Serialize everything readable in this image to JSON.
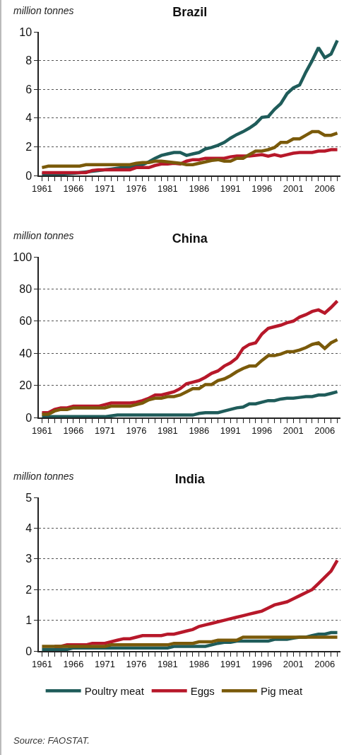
{
  "chart_data": [
    {
      "type": "line",
      "title": "Brazil",
      "ylabel": "million tonnes",
      "grid": "y",
      "legend": false,
      "line_style": "solid",
      "x": [
        1961,
        1962,
        1963,
        1964,
        1965,
        1966,
        1967,
        1968,
        1969,
        1970,
        1971,
        1972,
        1973,
        1974,
        1975,
        1976,
        1977,
        1978,
        1979,
        1980,
        1981,
        1982,
        1983,
        1984,
        1985,
        1986,
        1987,
        1988,
        1989,
        1990,
        1991,
        1992,
        1993,
        1994,
        1995,
        1996,
        1997,
        1998,
        1999,
        2000,
        2001,
        2002,
        2003,
        2004,
        2005,
        2006,
        2007,
        2008
      ],
      "xlim": [
        1960.5,
        2008.5
      ],
      "xticks": [
        1961,
        {
          "value": 1962,
          "label": null
        },
        {
          "value": 1963,
          "label": null
        },
        {
          "value": 1964,
          "label": null
        },
        {
          "value": 1965,
          "label": null
        },
        1966,
        {
          "value": 1967,
          "label": null
        },
        {
          "value": 1968,
          "label": null
        },
        {
          "value": 1969,
          "label": null
        },
        {
          "value": 1970,
          "label": null
        },
        1971,
        {
          "value": 1972,
          "label": null
        },
        {
          "value": 1973,
          "label": null
        },
        {
          "value": 1974,
          "label": null
        },
        {
          "value": 1975,
          "label": null
        },
        1976,
        {
          "value": 1977,
          "label": null
        },
        {
          "value": 1978,
          "label": null
        },
        {
          "value": 1979,
          "label": null
        },
        {
          "value": 1980,
          "label": null
        },
        1981,
        {
          "value": 1982,
          "label": null
        },
        {
          "value": 1983,
          "label": null
        },
        {
          "value": 1984,
          "label": null
        },
        {
          "value": 1985,
          "label": null
        },
        1986,
        {
          "value": 1987,
          "label": null
        },
        {
          "value": 1988,
          "label": null
        },
        {
          "value": 1989,
          "label": null
        },
        {
          "value": 1990,
          "label": null
        },
        1991,
        {
          "value": 1992,
          "label": null
        },
        {
          "value": 1993,
          "label": null
        },
        {
          "value": 1994,
          "label": null
        },
        {
          "value": 1995,
          "label": null
        },
        1996,
        {
          "value": 1997,
          "label": null
        },
        {
          "value": 1998,
          "label": null
        },
        {
          "value": 1999,
          "label": null
        },
        {
          "value": 2000,
          "label": null
        },
        2001,
        {
          "value": 2002,
          "label": null
        },
        {
          "value": 2003,
          "label": null
        },
        {
          "value": 2004,
          "label": null
        },
        {
          "value": 2005,
          "label": null
        },
        2006,
        {
          "value": 2007,
          "label": null
        },
        {
          "value": 2008,
          "label": null
        }
      ],
      "ylim": [
        0,
        10
      ],
      "yticks": [
        0,
        2,
        4,
        6,
        8,
        10
      ],
      "series": [
        {
          "color": "#1f5c5a",
          "values": [
            0.1,
            0.1,
            0.1,
            0.1,
            0.12,
            0.15,
            0.2,
            0.25,
            0.3,
            0.35,
            0.4,
            0.45,
            0.5,
            0.55,
            0.6,
            0.65,
            0.75,
            0.95,
            1.2,
            1.4,
            1.5,
            1.6,
            1.6,
            1.4,
            1.5,
            1.6,
            1.85,
            1.95,
            2.1,
            2.3,
            2.6,
            2.85,
            3.05,
            3.3,
            3.6,
            4.05,
            4.1,
            4.6,
            5.0,
            5.7,
            6.1,
            6.3,
            7.2,
            8.0,
            8.9,
            8.2,
            8.45,
            9.4
          ]
        },
        {
          "color": "#b7182a",
          "values": [
            0.2,
            0.2,
            0.2,
            0.2,
            0.2,
            0.2,
            0.2,
            0.2,
            0.35,
            0.4,
            0.4,
            0.4,
            0.4,
            0.4,
            0.4,
            0.55,
            0.55,
            0.55,
            0.7,
            0.8,
            0.8,
            0.85,
            0.8,
            1.0,
            1.1,
            1.1,
            1.2,
            1.2,
            1.2,
            1.2,
            1.3,
            1.35,
            1.35,
            1.35,
            1.4,
            1.45,
            1.35,
            1.45,
            1.35,
            1.45,
            1.55,
            1.6,
            1.6,
            1.6,
            1.7,
            1.7,
            1.8,
            1.8
          ]
        },
        {
          "color": "#7a5a0a",
          "values": [
            0.55,
            0.65,
            0.65,
            0.65,
            0.65,
            0.65,
            0.65,
            0.75,
            0.75,
            0.75,
            0.75,
            0.75,
            0.75,
            0.75,
            0.75,
            0.85,
            0.9,
            0.9,
            1.0,
            1.0,
            0.95,
            0.9,
            0.85,
            0.75,
            0.75,
            0.85,
            0.95,
            1.05,
            1.1,
            1.0,
            1.0,
            1.2,
            1.2,
            1.45,
            1.7,
            1.7,
            1.8,
            1.95,
            2.3,
            2.3,
            2.55,
            2.55,
            2.8,
            3.05,
            3.05,
            2.8,
            2.8,
            2.95
          ]
        }
      ]
    },
    {
      "type": "line",
      "title": "China",
      "ylabel": "million tonnes",
      "grid": "y",
      "legend": false,
      "line_style": "solid",
      "x": [
        1961,
        1962,
        1963,
        1964,
        1965,
        1966,
        1967,
        1968,
        1969,
        1970,
        1971,
        1972,
        1973,
        1974,
        1975,
        1976,
        1977,
        1978,
        1979,
        1980,
        1981,
        1982,
        1983,
        1984,
        1985,
        1986,
        1987,
        1988,
        1989,
        1990,
        1991,
        1992,
        1993,
        1994,
        1995,
        1996,
        1997,
        1998,
        1999,
        2000,
        2001,
        2002,
        2003,
        2004,
        2005,
        2006,
        2007,
        2008
      ],
      "xlim": [
        1960.5,
        2008.5
      ],
      "xticks": [
        1961,
        {
          "value": 1962,
          "label": null
        },
        {
          "value": 1963,
          "label": null
        },
        {
          "value": 1964,
          "label": null
        },
        {
          "value": 1965,
          "label": null
        },
        1966,
        {
          "value": 1967,
          "label": null
        },
        {
          "value": 1968,
          "label": null
        },
        {
          "value": 1969,
          "label": null
        },
        {
          "value": 1970,
          "label": null
        },
        1971,
        {
          "value": 1972,
          "label": null
        },
        {
          "value": 1973,
          "label": null
        },
        {
          "value": 1974,
          "label": null
        },
        {
          "value": 1975,
          "label": null
        },
        1976,
        {
          "value": 1977,
          "label": null
        },
        {
          "value": 1978,
          "label": null
        },
        {
          "value": 1979,
          "label": null
        },
        {
          "value": 1980,
          "label": null
        },
        1981,
        {
          "value": 1982,
          "label": null
        },
        {
          "value": 1983,
          "label": null
        },
        {
          "value": 1984,
          "label": null
        },
        {
          "value": 1985,
          "label": null
        },
        1986,
        {
          "value": 1987,
          "label": null
        },
        {
          "value": 1988,
          "label": null
        },
        {
          "value": 1989,
          "label": null
        },
        {
          "value": 1990,
          "label": null
        },
        1991,
        {
          "value": 1992,
          "label": null
        },
        {
          "value": 1993,
          "label": null
        },
        {
          "value": 1994,
          "label": null
        },
        {
          "value": 1995,
          "label": null
        },
        1996,
        {
          "value": 1997,
          "label": null
        },
        {
          "value": 1998,
          "label": null
        },
        {
          "value": 1999,
          "label": null
        },
        {
          "value": 2000,
          "label": null
        },
        2001,
        {
          "value": 2002,
          "label": null
        },
        {
          "value": 2003,
          "label": null
        },
        {
          "value": 2004,
          "label": null
        },
        {
          "value": 2005,
          "label": null
        },
        2006,
        {
          "value": 2007,
          "label": null
        },
        {
          "value": 2008,
          "label": null
        }
      ],
      "ylim": [
        0,
        100
      ],
      "yticks": [
        0,
        20,
        40,
        60,
        80,
        100
      ],
      "series": [
        {
          "color": "#1f5c5a",
          "values": [
            0.5,
            0.5,
            0.5,
            0.5,
            0.5,
            0.5,
            0.5,
            0.5,
            0.5,
            0.5,
            0.5,
            1,
            1.5,
            1.5,
            1.5,
            1.5,
            1.5,
            1.5,
            1.5,
            1.5,
            1.5,
            1.5,
            1.5,
            1.5,
            1.5,
            2.5,
            3,
            3,
            3,
            4,
            5,
            6,
            6.5,
            8.5,
            8.5,
            9.5,
            10.5,
            10.5,
            11.5,
            12,
            12,
            12.5,
            13,
            13,
            14,
            14,
            15,
            16
          ]
        },
        {
          "color": "#b7182a",
          "values": [
            3,
            3,
            5,
            6,
            6,
            7,
            7,
            7,
            7,
            7,
            8,
            9,
            9,
            9,
            9,
            9.5,
            10.5,
            12,
            14,
            14,
            15,
            16,
            18,
            21,
            22,
            23,
            25,
            27.5,
            29,
            32,
            34,
            37,
            43,
            45.5,
            46.5,
            52,
            55.5,
            56.5,
            57.5,
            59,
            60,
            62.5,
            64,
            66,
            67,
            65,
            68.5,
            72.5
          ]
        },
        {
          "color": "#7a5a0a",
          "values": [
            2,
            2,
            4,
            5,
            5,
            6,
            6,
            6,
            6,
            6,
            6,
            7,
            7,
            7,
            7,
            8,
            9,
            11,
            12,
            12,
            13,
            13,
            14,
            16,
            18,
            18,
            20.5,
            20.5,
            23,
            24,
            26,
            28.5,
            30.5,
            32,
            32,
            35.5,
            38.5,
            38.5,
            39.5,
            41,
            41,
            42,
            43.5,
            45.5,
            46.5,
            43,
            46.5,
            48.5
          ]
        }
      ]
    },
    {
      "type": "line",
      "title": "India",
      "ylabel": "million tonnes",
      "grid": "y",
      "legend": "bottom",
      "line_style": "solid",
      "annotations": [
        "Source: FAOSTAT."
      ],
      "x": [
        1961,
        1962,
        1963,
        1964,
        1965,
        1966,
        1967,
        1968,
        1969,
        1970,
        1971,
        1972,
        1973,
        1974,
        1975,
        1976,
        1977,
        1978,
        1979,
        1980,
        1981,
        1982,
        1983,
        1984,
        1985,
        1986,
        1987,
        1988,
        1989,
        1990,
        1991,
        1992,
        1993,
        1994,
        1995,
        1996,
        1997,
        1998,
        1999,
        2000,
        2001,
        2002,
        2003,
        2004,
        2005,
        2006,
        2007,
        2008
      ],
      "xlim": [
        1960.5,
        2008.5
      ],
      "xticks": [
        1961,
        {
          "value": 1962,
          "label": null
        },
        {
          "value": 1963,
          "label": null
        },
        {
          "value": 1964,
          "label": null
        },
        {
          "value": 1965,
          "label": null
        },
        1966,
        {
          "value": 1967,
          "label": null
        },
        {
          "value": 1968,
          "label": null
        },
        {
          "value": 1969,
          "label": null
        },
        {
          "value": 1970,
          "label": null
        },
        1971,
        {
          "value": 1972,
          "label": null
        },
        {
          "value": 1973,
          "label": null
        },
        {
          "value": 1974,
          "label": null
        },
        {
          "value": 1975,
          "label": null
        },
        1976,
        {
          "value": 1977,
          "label": null
        },
        {
          "value": 1978,
          "label": null
        },
        {
          "value": 1979,
          "label": null
        },
        {
          "value": 1980,
          "label": null
        },
        1981,
        {
          "value": 1982,
          "label": null
        },
        {
          "value": 1983,
          "label": null
        },
        {
          "value": 1984,
          "label": null
        },
        {
          "value": 1985,
          "label": null
        },
        1986,
        {
          "value": 1987,
          "label": null
        },
        {
          "value": 1988,
          "label": null
        },
        {
          "value": 1989,
          "label": null
        },
        {
          "value": 1990,
          "label": null
        },
        1991,
        {
          "value": 1992,
          "label": null
        },
        {
          "value": 1993,
          "label": null
        },
        {
          "value": 1994,
          "label": null
        },
        {
          "value": 1995,
          "label": null
        },
        1996,
        {
          "value": 1997,
          "label": null
        },
        {
          "value": 1998,
          "label": null
        },
        {
          "value": 1999,
          "label": null
        },
        {
          "value": 2000,
          "label": null
        },
        2001,
        {
          "value": 2002,
          "label": null
        },
        {
          "value": 2003,
          "label": null
        },
        {
          "value": 2004,
          "label": null
        },
        {
          "value": 2005,
          "label": null
        },
        2006,
        {
          "value": 2007,
          "label": null
        },
        {
          "value": 2008,
          "label": null
        }
      ],
      "ylim": [
        0,
        5
      ],
      "yticks": [
        0,
        1,
        2,
        3,
        4,
        5
      ],
      "series": [
        {
          "name": "Poultry meat",
          "color": "#1f5c5a",
          "values": [
            0.05,
            0.05,
            0.05,
            0.05,
            0.05,
            0.1,
            0.1,
            0.1,
            0.1,
            0.1,
            0.1,
            0.1,
            0.1,
            0.1,
            0.1,
            0.1,
            0.1,
            0.1,
            0.1,
            0.1,
            0.1,
            0.15,
            0.15,
            0.15,
            0.15,
            0.15,
            0.15,
            0.2,
            0.25,
            0.28,
            0.28,
            0.32,
            0.32,
            0.32,
            0.32,
            0.32,
            0.32,
            0.38,
            0.38,
            0.38,
            0.42,
            0.45,
            0.45,
            0.5,
            0.55,
            0.55,
            0.6,
            0.6
          ]
        },
        {
          "name": "Eggs",
          "color": "#b7182a",
          "values": [
            null,
            null,
            0.15,
            0.15,
            0.2,
            0.2,
            0.2,
            0.2,
            0.25,
            0.25,
            0.25,
            0.3,
            0.35,
            0.4,
            0.4,
            0.45,
            0.5,
            0.5,
            0.5,
            0.5,
            0.55,
            0.55,
            0.6,
            0.65,
            0.7,
            0.8,
            0.85,
            0.9,
            0.95,
            1.0,
            1.05,
            1.1,
            1.15,
            1.2,
            1.25,
            1.3,
            1.4,
            1.5,
            1.55,
            1.6,
            1.7,
            1.8,
            1.9,
            2.0,
            2.2,
            2.4,
            2.6,
            2.95
          ]
        },
        {
          "name": "Pig meat",
          "color": "#7a5a0a",
          "values": [
            0.15,
            0.15,
            0.15,
            0.15,
            0.15,
            0.15,
            0.15,
            0.15,
            0.15,
            0.15,
            0.15,
            0.2,
            0.2,
            0.2,
            0.2,
            0.2,
            0.2,
            0.2,
            0.2,
            0.2,
            0.2,
            0.25,
            0.25,
            0.25,
            0.25,
            0.3,
            0.3,
            0.3,
            0.35,
            0.35,
            0.35,
            0.35,
            0.45,
            0.45,
            0.45,
            0.45,
            0.45,
            0.45,
            0.45,
            0.45,
            0.45,
            0.45,
            0.45,
            0.45,
            0.45,
            0.45,
            0.45,
            0.45
          ]
        }
      ]
    }
  ]
}
